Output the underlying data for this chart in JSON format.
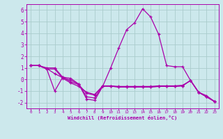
{
  "xlabel": "Windchill (Refroidissement éolien,°C)",
  "background_color": "#cce8ec",
  "grid_color": "#aacccc",
  "line_color": "#aa00aa",
  "spine_color": "#aa00aa",
  "xlim": [
    -0.5,
    23.5
  ],
  "ylim": [
    -2.5,
    6.5
  ],
  "yticks": [
    -2,
    -1,
    0,
    1,
    2,
    3,
    4,
    5,
    6
  ],
  "xticks": [
    0,
    1,
    2,
    3,
    4,
    5,
    6,
    7,
    8,
    9,
    10,
    11,
    12,
    13,
    14,
    15,
    16,
    17,
    18,
    19,
    20,
    21,
    22,
    23
  ],
  "series": [
    [
      1.2,
      1.2,
      0.9,
      -1.0,
      0.2,
      0.1,
      -0.4,
      -1.7,
      -1.8,
      -0.6,
      1.0,
      2.7,
      4.3,
      4.9,
      6.1,
      5.4,
      3.9,
      1.2,
      1.1,
      1.1,
      -0.1,
      -1.1,
      -1.4,
      -1.9
    ],
    [
      1.2,
      1.2,
      0.9,
      0.9,
      0.1,
      -0.3,
      -0.6,
      -1.1,
      -1.3,
      -0.55,
      -0.55,
      -0.6,
      -0.6,
      -0.6,
      -0.6,
      -0.6,
      -0.55,
      -0.55,
      -0.55,
      -0.5,
      -0.1,
      -1.1,
      -1.5,
      -1.9
    ],
    [
      1.2,
      1.2,
      1.0,
      1.0,
      0.2,
      -0.2,
      -0.45,
      -1.2,
      -1.35,
      -0.58,
      -0.58,
      -0.65,
      -0.65,
      -0.65,
      -0.65,
      -0.65,
      -0.6,
      -0.6,
      -0.6,
      -0.55,
      -0.08,
      -1.1,
      -1.5,
      -1.9
    ],
    [
      1.2,
      1.2,
      0.95,
      0.5,
      0.15,
      -0.05,
      -0.4,
      -1.5,
      -1.6,
      -0.58,
      -0.58,
      -0.65,
      -0.65,
      -0.65,
      -0.65,
      -0.65,
      -0.6,
      -0.6,
      -0.6,
      -0.55,
      -0.08,
      -1.1,
      -1.5,
      -1.9
    ]
  ]
}
